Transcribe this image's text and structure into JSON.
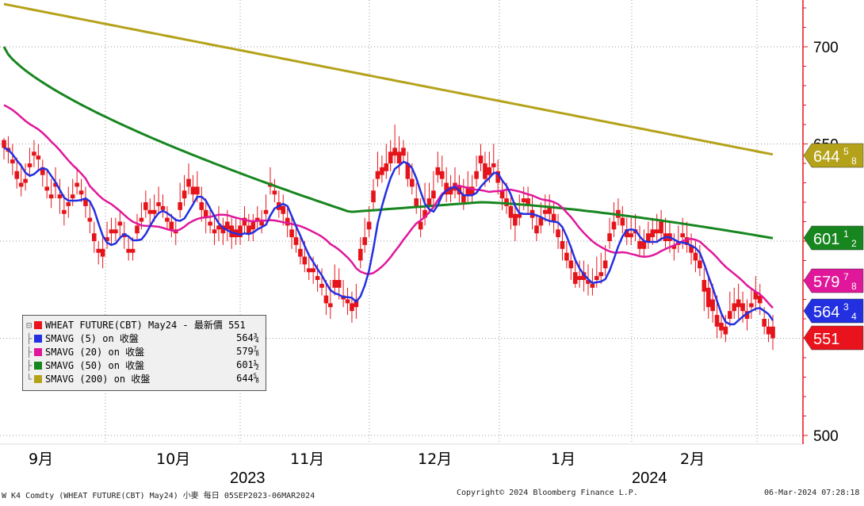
{
  "chart_data": {
    "type": "candlestick",
    "y_axis_labels": [
      "700",
      "650",
      "500"
    ],
    "ylim": [
      493,
      720
    ],
    "x_labels": [
      "9月",
      "10月",
      "11月",
      "12月",
      "1月",
      "2月"
    ],
    "year_labels": [
      "2023",
      "2024"
    ],
    "price_tags": [
      {
        "key": "sma200",
        "whole": "644",
        "num": "5",
        "den": "8",
        "color": "#b5a21b"
      },
      {
        "key": "sma50",
        "whole": "601",
        "num": "1",
        "den": "2",
        "color": "#17861f"
      },
      {
        "key": "sma20",
        "whole": "579",
        "num": "7",
        "den": "8",
        "color": "#e0179a"
      },
      {
        "key": "sma5",
        "whole": "564",
        "num": "3",
        "den": "4",
        "color": "#2330e0"
      },
      {
        "key": "last",
        "whole": "551",
        "num": "",
        "den": "",
        "color": "#e8131c"
      }
    ],
    "legend": [
      {
        "label": "WHEAT FUTURE(CBT) May24 - 最新價 551",
        "value": "",
        "color": "#e8131c"
      },
      {
        "label": "SMAVG (5)  on 收盤",
        "value": "564¾",
        "color": "#2330e0"
      },
      {
        "label": "SMAVG (20)  on 收盤",
        "value": "579⅞",
        "color": "#e0179a"
      },
      {
        "label": "SMAVG (50)  on 收盤",
        "value": "601½",
        "color": "#17861f"
      },
      {
        "label": "SMAVG (200)  on 收盤",
        "value": "644⅝",
        "color": "#b5a21b"
      }
    ],
    "candles": [
      [
        652,
        653,
        648,
        642
      ],
      [
        648,
        654,
        646,
        640
      ],
      [
        642,
        650,
        640,
        634
      ],
      [
        636,
        643,
        632,
        627
      ],
      [
        630,
        640,
        628,
        623
      ],
      [
        632,
        640,
        630,
        626
      ],
      [
        640,
        648,
        638,
        633
      ],
      [
        646,
        652,
        644,
        638
      ],
      [
        644,
        650,
        642,
        636
      ],
      [
        638,
        642,
        634,
        628
      ],
      [
        628,
        636,
        626,
        622
      ],
      [
        624,
        632,
        622,
        617
      ],
      [
        630,
        638,
        628,
        622
      ],
      [
        624,
        632,
        622,
        614
      ],
      [
        616,
        624,
        614,
        608
      ],
      [
        620,
        628,
        618,
        612
      ],
      [
        624,
        632,
        622,
        618
      ],
      [
        630,
        638,
        628,
        624
      ],
      [
        626,
        632,
        624,
        620
      ],
      [
        622,
        628,
        618,
        612
      ],
      [
        612,
        620,
        610,
        604
      ],
      [
        604,
        610,
        600,
        594
      ],
      [
        596,
        600,
        594,
        588
      ],
      [
        596,
        604,
        592,
        586
      ],
      [
        602,
        610,
        600,
        596
      ],
      [
        606,
        612,
        604,
        598
      ],
      [
        606,
        612,
        604,
        600
      ],
      [
        610,
        616,
        608,
        602
      ],
      [
        604,
        610,
        602,
        596
      ],
      [
        596,
        602,
        594,
        590
      ],
      [
        596,
        602,
        594,
        590
      ],
      [
        608,
        614,
        604,
        600
      ],
      [
        612,
        620,
        610,
        606
      ],
      [
        620,
        626,
        616,
        612
      ],
      [
        616,
        622,
        614,
        608
      ],
      [
        616,
        624,
        614,
        610
      ],
      [
        620,
        628,
        618,
        614
      ],
      [
        618,
        624,
        616,
        612
      ],
      [
        612,
        618,
        610,
        606
      ],
      [
        610,
        614,
        606,
        602
      ],
      [
        606,
        612,
        604,
        598
      ],
      [
        620,
        630,
        616,
        612
      ],
      [
        626,
        634,
        622,
        618
      ],
      [
        632,
        640,
        628,
        624
      ],
      [
        628,
        634,
        624,
        620
      ],
      [
        628,
        636,
        624,
        620
      ],
      [
        620,
        628,
        616,
        610
      ],
      [
        616,
        622,
        612,
        604
      ],
      [
        610,
        618,
        608,
        604
      ],
      [
        606,
        612,
        604,
        598
      ],
      [
        608,
        618,
        606,
        600
      ],
      [
        608,
        612,
        604,
        598
      ],
      [
        610,
        616,
        606,
        600
      ],
      [
        608,
        612,
        602,
        596
      ],
      [
        606,
        612,
        602,
        598
      ],
      [
        608,
        612,
        602,
        598
      ],
      [
        612,
        618,
        608,
        604
      ],
      [
        608,
        614,
        604,
        600
      ],
      [
        610,
        614,
        606,
        600
      ],
      [
        612,
        618,
        610,
        606
      ],
      [
        610,
        616,
        608,
        604
      ],
      [
        616,
        624,
        614,
        610
      ],
      [
        630,
        638,
        628,
        624
      ],
      [
        626,
        632,
        624,
        620
      ],
      [
        620,
        626,
        616,
        612
      ],
      [
        618,
        624,
        614,
        608
      ],
      [
        612,
        618,
        608,
        602
      ],
      [
        606,
        612,
        602,
        596
      ],
      [
        602,
        608,
        598,
        594
      ],
      [
        596,
        602,
        592,
        588
      ],
      [
        592,
        600,
        588,
        584
      ],
      [
        586,
        594,
        584,
        580
      ],
      [
        586,
        592,
        584,
        578
      ],
      [
        582,
        588,
        580,
        574
      ],
      [
        578,
        586,
        576,
        572
      ],
      [
        572,
        580,
        568,
        562
      ],
      [
        568,
        580,
        566,
        560
      ],
      [
        580,
        588,
        576,
        572
      ],
      [
        580,
        586,
        576,
        570
      ],
      [
        572,
        580,
        570,
        566
      ],
      [
        570,
        576,
        568,
        562
      ],
      [
        568,
        574,
        564,
        558
      ],
      [
        570,
        578,
        566,
        560
      ],
      [
        596,
        602,
        590,
        586
      ],
      [
        602,
        612,
        598,
        594
      ],
      [
        610,
        618,
        606,
        602
      ],
      [
        626,
        632,
        620,
        616
      ],
      [
        636,
        646,
        632,
        628
      ],
      [
        638,
        644,
        634,
        630
      ],
      [
        640,
        650,
        636,
        632
      ],
      [
        646,
        652,
        640,
        636
      ],
      [
        648,
        660,
        644,
        640
      ],
      [
        646,
        654,
        640,
        634
      ],
      [
        648,
        652,
        644,
        640
      ],
      [
        640,
        646,
        632,
        628
      ],
      [
        632,
        640,
        628,
        624
      ],
      [
        622,
        630,
        618,
        614
      ],
      [
        610,
        622,
        606,
        602
      ],
      [
        616,
        630,
        612,
        608
      ],
      [
        622,
        630,
        618,
        614
      ],
      [
        626,
        636,
        622,
        618
      ],
      [
        638,
        646,
        634,
        630
      ],
      [
        636,
        644,
        632,
        628
      ],
      [
        630,
        638,
        624,
        620
      ],
      [
        628,
        634,
        624,
        620
      ],
      [
        630,
        638,
        626,
        622
      ],
      [
        628,
        634,
        624,
        620
      ],
      [
        624,
        632,
        620,
        616
      ],
      [
        628,
        636,
        624,
        620
      ],
      [
        628,
        634,
        624,
        620
      ],
      [
        636,
        644,
        632,
        628
      ],
      [
        644,
        650,
        640,
        636
      ],
      [
        640,
        646,
        632,
        628
      ],
      [
        638,
        646,
        634,
        630
      ],
      [
        640,
        650,
        638,
        634
      ],
      [
        636,
        642,
        630,
        624
      ],
      [
        626,
        632,
        622,
        616
      ],
      [
        622,
        630,
        618,
        614
      ],
      [
        618,
        624,
        612,
        606
      ],
      [
        614,
        620,
        608,
        600
      ],
      [
        614,
        624,
        612,
        608
      ],
      [
        622,
        628,
        620,
        616
      ],
      [
        622,
        628,
        618,
        614
      ],
      [
        616,
        624,
        612,
        606
      ],
      [
        608,
        614,
        604,
        600
      ],
      [
        612,
        620,
        608,
        604
      ],
      [
        616,
        624,
        614,
        610
      ],
      [
        618,
        624,
        614,
        608
      ],
      [
        614,
        620,
        610,
        604
      ],
      [
        606,
        614,
        602,
        596
      ],
      [
        600,
        608,
        596,
        590
      ],
      [
        594,
        600,
        590,
        586
      ],
      [
        590,
        596,
        586,
        580
      ],
      [
        584,
        590,
        578,
        576
      ],
      [
        582,
        590,
        580,
        576
      ],
      [
        584,
        590,
        580,
        574
      ],
      [
        580,
        588,
        578,
        572
      ],
      [
        578,
        586,
        576,
        572
      ],
      [
        582,
        592,
        580,
        576
      ],
      [
        584,
        594,
        582,
        578
      ],
      [
        590,
        598,
        586,
        582
      ],
      [
        604,
        612,
        600,
        596
      ],
      [
        610,
        620,
        606,
        602
      ],
      [
        616,
        622,
        612,
        608
      ],
      [
        612,
        618,
        608,
        604
      ],
      [
        606,
        612,
        602,
        598
      ],
      [
        604,
        612,
        602,
        598
      ],
      [
        606,
        614,
        604,
        600
      ],
      [
        600,
        608,
        596,
        592
      ],
      [
        600,
        606,
        596,
        592
      ],
      [
        604,
        610,
        600,
        596
      ],
      [
        606,
        612,
        602,
        598
      ],
      [
        606,
        614,
        604,
        600
      ],
      [
        610,
        616,
        604,
        600
      ],
      [
        604,
        612,
        600,
        596
      ],
      [
        604,
        610,
        600,
        594
      ],
      [
        598,
        604,
        596,
        590
      ],
      [
        600,
        608,
        598,
        594
      ],
      [
        604,
        612,
        602,
        596
      ],
      [
        602,
        610,
        598,
        594
      ],
      [
        598,
        604,
        594,
        588
      ],
      [
        594,
        600,
        590,
        584
      ],
      [
        590,
        598,
        586,
        582
      ],
      [
        580,
        586,
        574,
        564
      ],
      [
        576,
        582,
        566,
        560
      ],
      [
        570,
        578,
        564,
        558
      ],
      [
        562,
        572,
        556,
        550
      ],
      [
        558,
        564,
        554,
        550
      ],
      [
        556,
        562,
        552,
        548
      ],
      [
        564,
        574,
        560,
        556
      ],
      [
        568,
        576,
        564,
        560
      ],
      [
        570,
        578,
        566,
        560
      ],
      [
        568,
        574,
        564,
        558
      ],
      [
        564,
        570,
        560,
        554
      ],
      [
        568,
        576,
        566,
        560
      ],
      [
        574,
        582,
        570,
        564
      ],
      [
        572,
        578,
        568,
        562
      ],
      [
        560,
        566,
        556,
        552
      ],
      [
        556,
        560,
        552,
        548
      ],
      [
        556,
        562,
        550,
        544
      ]
    ]
  }
}
